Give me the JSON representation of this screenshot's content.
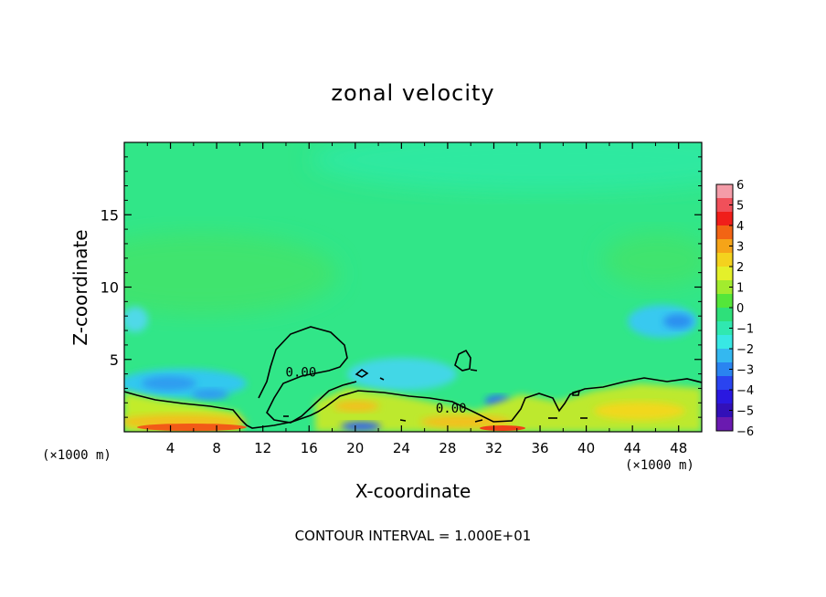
{
  "chart_data": {
    "type": "heatmap",
    "title": "zonal velocity",
    "xlabel": "X-coordinate",
    "ylabel": "Z-coordinate",
    "x_unit_label": "(×1000 m)",
    "x_ticks": [
      4,
      8,
      12,
      16,
      20,
      24,
      28,
      32,
      36,
      40,
      44,
      48
    ],
    "y_ticks": [
      5,
      10,
      15
    ],
    "xlim": [
      0,
      50
    ],
    "ylim": [
      0,
      20
    ],
    "colorbar": {
      "ticks": [
        6,
        5,
        4,
        3,
        2,
        1,
        0,
        -1,
        -2,
        -3,
        -4,
        -5,
        -6
      ],
      "tick_labels": [
        "6",
        "5",
        "4",
        "3",
        "2",
        "1",
        "0",
        "−1",
        "−2",
        "−3",
        "−4",
        "−5",
        "−6"
      ],
      "range": [
        -6,
        6
      ]
    },
    "contour_labels": [
      {
        "text": "0.00",
        "x": 15.3,
        "z": 4.0
      },
      {
        "text": "0.00",
        "x": 28.3,
        "z": 1.5
      }
    ],
    "field_features": [
      {
        "desc": "lower shear layer",
        "x_range": [
          0,
          50
        ],
        "z_range": [
          0,
          3
        ],
        "value": 1
      },
      {
        "desc": "near-surface maximum",
        "x_range": [
          0,
          11
        ],
        "z_range": [
          0,
          0.5
        ],
        "value": 4
      },
      {
        "desc": "surface maximum",
        "x_range": [
          13,
          35
        ],
        "z_range": [
          0,
          0.5
        ],
        "value": 4
      },
      {
        "desc": "negative core",
        "x_range": [
          45,
          49
        ],
        "z_range": [
          7,
          8.5
        ],
        "value": -2
      },
      {
        "desc": "negative core",
        "x_range": [
          18,
          21
        ],
        "z_range": [
          0,
          0.5
        ],
        "value": -3
      },
      {
        "desc": "negative core",
        "x_range": [
          32,
          33
        ],
        "z_range": [
          1.5,
          2.5
        ],
        "value": -3
      },
      {
        "desc": "low-level negative band",
        "x_range": [
          1,
          8
        ],
        "z_range": [
          2,
          4
        ],
        "value": -2
      }
    ],
    "colors": {
      "background_field": "#2fe88a",
      "frame": "#000000"
    }
  },
  "footnote": "CONTOUR INTERVAL = 1.000E+01"
}
